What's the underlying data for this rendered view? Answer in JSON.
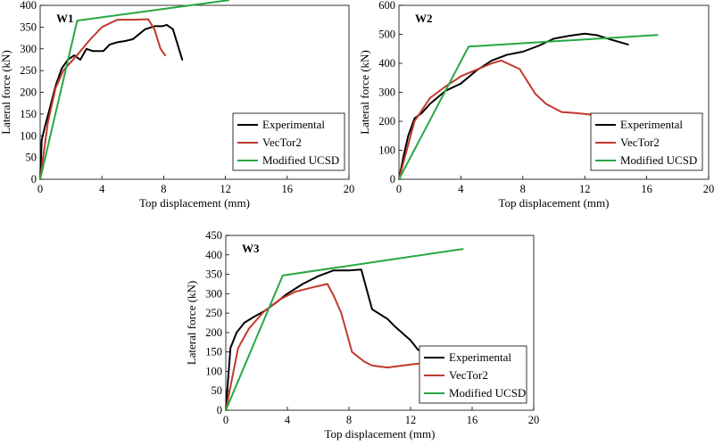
{
  "chart_data": [
    {
      "type": "line",
      "title": "W1",
      "xlabel": "Top displacement (mm)",
      "ylabel": "Lateral force (kN)",
      "xlim": [
        0,
        20
      ],
      "ylim": [
        0,
        400
      ],
      "xticks": [
        "0",
        "4",
        "8",
        "12",
        "16",
        "20"
      ],
      "yticks": [
        "0",
        "50",
        "100",
        "150",
        "200",
        "250",
        "300",
        "350",
        "400"
      ],
      "grid": false,
      "legend_position": "bottom-right",
      "series": [
        {
          "name": "Experimental",
          "color": "#000000",
          "x": [
            0,
            0.1,
            0.3,
            0.6,
            1.0,
            1.4,
            1.8,
            2.2,
            2.6,
            3.0,
            3.4,
            3.8,
            4.1,
            4.5,
            5.0,
            5.5,
            6.0,
            6.8,
            7.4,
            7.9,
            8.2,
            8.6,
            9.2
          ],
          "y": [
            0,
            90,
            120,
            160,
            215,
            255,
            275,
            285,
            275,
            300,
            295,
            295,
            295,
            310,
            315,
            318,
            322,
            345,
            352,
            352,
            355,
            345,
            275
          ]
        },
        {
          "name": "VecTor2",
          "color": "#c0392b",
          "x": [
            0,
            0.5,
            1.0,
            1.5,
            2.0,
            2.5,
            3.2,
            4.0,
            5.0,
            6.0,
            7.0,
            7.4,
            7.8,
            8.1
          ],
          "y": [
            0,
            130,
            210,
            250,
            270,
            290,
            320,
            350,
            367,
            367,
            368,
            345,
            300,
            285
          ]
        },
        {
          "name": "Modified UCSD",
          "color": "#27a844",
          "x": [
            0,
            2.4,
            12.2
          ],
          "y": [
            0,
            365,
            412
          ]
        }
      ]
    },
    {
      "type": "line",
      "title": "W2",
      "xlabel": "Top displacement (mm)",
      "ylabel": "Lateral force (kN)",
      "xlim": [
        0,
        20
      ],
      "ylim": [
        0,
        600
      ],
      "xticks": [
        "0",
        "4",
        "8",
        "12",
        "16",
        "20"
      ],
      "yticks": [
        "0",
        "100",
        "200",
        "300",
        "400",
        "500",
        "600"
      ],
      "grid": false,
      "legend_position": "bottom-right",
      "series": [
        {
          "name": "Experimental",
          "color": "#000000",
          "x": [
            0,
            0.3,
            0.6,
            1.0,
            1.5,
            2.0,
            3.0,
            4.0,
            5.0,
            6.0,
            7.0,
            8.0,
            9.0,
            10.0,
            11.0,
            12.0,
            12.8,
            13.5,
            14.8
          ],
          "y": [
            0,
            80,
            150,
            210,
            230,
            260,
            305,
            330,
            375,
            410,
            430,
            440,
            460,
            485,
            495,
            502,
            497,
            485,
            465
          ]
        },
        {
          "name": "VecTor2",
          "color": "#c0392b",
          "x": [
            0,
            1.0,
            2.0,
            3.0,
            4.0,
            5.0,
            6.0,
            6.6,
            7.2,
            7.8,
            8.8,
            9.5,
            10.5,
            11.5,
            12.5,
            13.1,
            13.8
          ],
          "y": [
            0,
            200,
            280,
            320,
            355,
            378,
            400,
            410,
            395,
            380,
            295,
            260,
            232,
            228,
            222,
            225,
            212
          ]
        },
        {
          "name": "Modified UCSD",
          "color": "#27a844",
          "x": [
            0,
            4.5,
            16.7
          ],
          "y": [
            0,
            458,
            498
          ]
        }
      ]
    },
    {
      "type": "line",
      "title": "W3",
      "xlabel": "Top displacement (mm)",
      "ylabel": "Lateral force (kN)",
      "xlim": [
        0,
        20
      ],
      "ylim": [
        0,
        450
      ],
      "xticks": [
        "0",
        "4",
        "8",
        "12",
        "16",
        "20"
      ],
      "yticks": [
        "0",
        "50",
        "100",
        "150",
        "200",
        "250",
        "300",
        "350",
        "400",
        "450"
      ],
      "grid": false,
      "legend_position": "bottom-right",
      "series": [
        {
          "name": "Experimental",
          "color": "#000000",
          "x": [
            0,
            0.3,
            0.7,
            1.2,
            1.8,
            2.5,
            3.2,
            4.0,
            5.0,
            6.0,
            7.0,
            8.0,
            8.8,
            9.5,
            10.5,
            11.0,
            12.0,
            12.5
          ],
          "y": [
            0,
            160,
            200,
            225,
            240,
            255,
            275,
            300,
            325,
            345,
            360,
            360,
            362,
            260,
            235,
            215,
            180,
            155
          ]
        },
        {
          "name": "VecTor2",
          "color": "#c0392b",
          "x": [
            0,
            0.8,
            1.5,
            2.5,
            3.5,
            4.5,
            5.5,
            6.6,
            7.0,
            7.5,
            8.2,
            9.0,
            9.5,
            10.5,
            11.5,
            12.5
          ],
          "y": [
            0,
            160,
            210,
            255,
            285,
            305,
            315,
            325,
            295,
            250,
            150,
            125,
            115,
            110,
            115,
            120
          ]
        },
        {
          "name": "Modified UCSD",
          "color": "#27a844",
          "x": [
            0,
            3.7,
            15.4
          ],
          "y": [
            0,
            347,
            415
          ]
        }
      ]
    }
  ]
}
